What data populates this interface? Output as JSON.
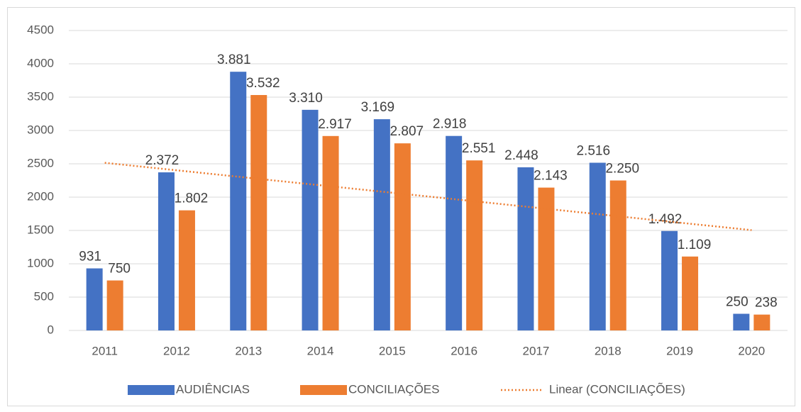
{
  "chart_data": {
    "type": "bar",
    "categories": [
      "2011",
      "2012",
      "2013",
      "2014",
      "2015",
      "2016",
      "2017",
      "2018",
      "2019",
      "2020"
    ],
    "series": [
      {
        "name": "AUDIÊNCIAS",
        "color": "#4472c4",
        "values": [
          931,
          2372,
          3881,
          3310,
          3169,
          2918,
          2448,
          2516,
          1492,
          250
        ],
        "value_labels": [
          "931",
          "2.372",
          "3.881",
          "3.310",
          "3.169",
          "2.918",
          "2.448",
          "2.516",
          "1.492",
          "250"
        ]
      },
      {
        "name": "CONCILIAÇÕES",
        "color": "#ed7d31",
        "values": [
          750,
          1802,
          3532,
          2917,
          2807,
          2551,
          2143,
          2250,
          1109,
          238
        ],
        "value_labels": [
          "750",
          "1.802",
          "3.532",
          "2.917",
          "2.807",
          "2.551",
          "2.143",
          "2.250",
          "1.109",
          "238"
        ]
      },
      {
        "name": "Linear (CONCILIAÇÕES)",
        "color": "#ed7d31",
        "type": "trend",
        "values": [
          2515,
          2403,
          2290,
          2178,
          2066,
          1954,
          1842,
          1729,
          1617,
          1505
        ]
      }
    ],
    "ylim": [
      0,
      4500
    ],
    "yticks": [
      0,
      500,
      1000,
      1500,
      2000,
      2500,
      3000,
      3500,
      4000,
      4500
    ],
    "grid": true,
    "legend": "bottom"
  }
}
